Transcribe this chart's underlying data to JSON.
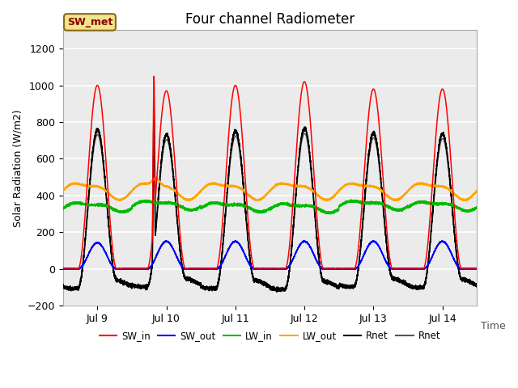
{
  "title": "Four channel Radiometer",
  "ylabel": "Solar Radiation (W/m2)",
  "xlabel": "Time",
  "xlim_days": [
    0,
    6
  ],
  "ylim": [
    -200,
    1300
  ],
  "yticks": [
    -200,
    0,
    200,
    400,
    600,
    800,
    1000,
    1200
  ],
  "xtick_labels": [
    "Jul 9",
    "Jul 10",
    "Jul 11",
    "Jul 12",
    "Jul 13",
    "Jul 14"
  ],
  "xtick_positions": [
    0.5,
    1.5,
    2.5,
    3.5,
    4.5,
    5.5
  ],
  "annotation_text": "SW_met",
  "annotation_bg": "#f0e68c",
  "annotation_border": "#8B6914",
  "plot_bg": "#ebebeb",
  "fig_bg": "#ffffff",
  "colors": {
    "SW_in": "#ff0000",
    "SW_out": "#0000ff",
    "LW_in": "#00bb00",
    "LW_out": "#ffa500",
    "Rnet_black": "#000000",
    "Rnet_dark": "#555555"
  },
  "legend_labels": [
    "SW_in",
    "SW_out",
    "LW_in",
    "LW_out",
    "Rnet",
    "Rnet"
  ],
  "n_days": 6,
  "points_per_day": 1440
}
